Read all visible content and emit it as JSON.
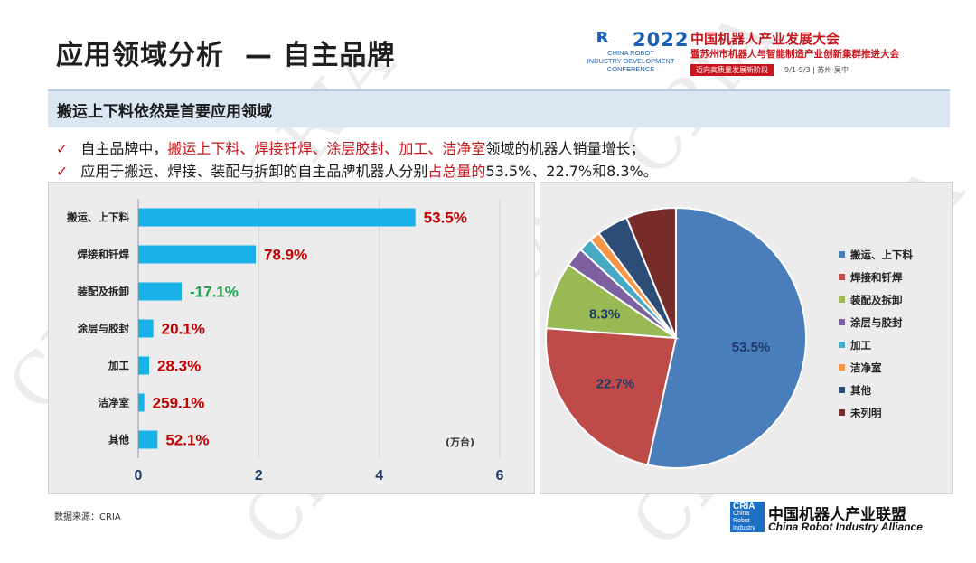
{
  "page": {
    "title": "应用领域分析  — 自主品牌",
    "section_banner": "搬运上下料依然是首要应用领域",
    "bullets": [
      {
        "check": "✓",
        "parts": [
          {
            "text": "自主品牌中，",
            "red": false
          },
          {
            "text": "搬运上下料、焊接钎焊、涂层胶封、加工、洁净室",
            "red": true
          },
          {
            "text": "领域的机器人销量增长；",
            "red": false
          }
        ]
      },
      {
        "check": "✓",
        "parts": [
          {
            "text": "应用于搬运、焊接、装配与拆卸的自主品牌机器人分别",
            "red": false
          },
          {
            "text": "占总量的",
            "red": true
          },
          {
            "text": "53.5%、22.7%和8.3%。",
            "red": false
          }
        ]
      }
    ],
    "source": "数据来源：CRIA",
    "watermark": "CRIA"
  },
  "conference_logo": {
    "mark": "ʀ",
    "year": "2022",
    "english": [
      "CHINA ROBOT",
      "INDUSTRY DEVELOPMENT",
      "CONFERENCE"
    ],
    "title_cn": "中国机器人产业发展大会",
    "subtitle_cn": "暨苏州市机器人与智能制造产业创新集群推进大会",
    "tagline": "迈向高质量发展新阶段",
    "date_place": "9/1-9/3 | 苏州·吴中"
  },
  "alliance_logo": {
    "box_text": "CRIA",
    "box_sub": [
      "China",
      "Robot",
      "Industry",
      "Alliance"
    ],
    "name_cn": "中国机器人产业联盟",
    "name_en": "China Robot Industry Alliance"
  },
  "colors": {
    "bar": "#1ab0e8",
    "growth_positive": "#c00000",
    "growth_negative": "#1fa34a",
    "pie": [
      "#4a7ebb",
      "#be4b48",
      "#98b954",
      "#7d60a0",
      "#46aac5",
      "#f79646",
      "#2c4d75",
      "#772c2a"
    ]
  },
  "chart_data": [
    {
      "type": "bar",
      "orientation": "horizontal",
      "categories": [
        "搬运、上下料",
        "焊接和钎焊",
        "装配及拆卸",
        "涂层与胶封",
        "加工",
        "洁净室",
        "其他"
      ],
      "values": [
        4.6,
        1.95,
        0.72,
        0.25,
        0.18,
        0.1,
        0.32
      ],
      "data_labels": [
        "53.5%",
        "78.9%",
        "-17.1%",
        "20.1%",
        "28.3%",
        "259.1%",
        "52.1%"
      ],
      "unit_label": "(万台)",
      "xlim": [
        0,
        6
      ],
      "xticks": [
        0,
        2,
        4,
        6
      ],
      "grid": true
    },
    {
      "type": "pie",
      "labels": [
        "搬运、上下料",
        "焊接和钎焊",
        "装配及拆卸",
        "涂层与胶封",
        "加工",
        "洁净室",
        "其他",
        "未列明"
      ],
      "values": [
        53.5,
        22.7,
        8.3,
        2.4,
        1.7,
        1.3,
        3.9,
        6.2
      ],
      "data_labels": [
        "53.5%",
        "22.7%",
        "8.3%",
        "",
        "",
        "",
        "",
        ""
      ],
      "legend_position": "right"
    }
  ]
}
